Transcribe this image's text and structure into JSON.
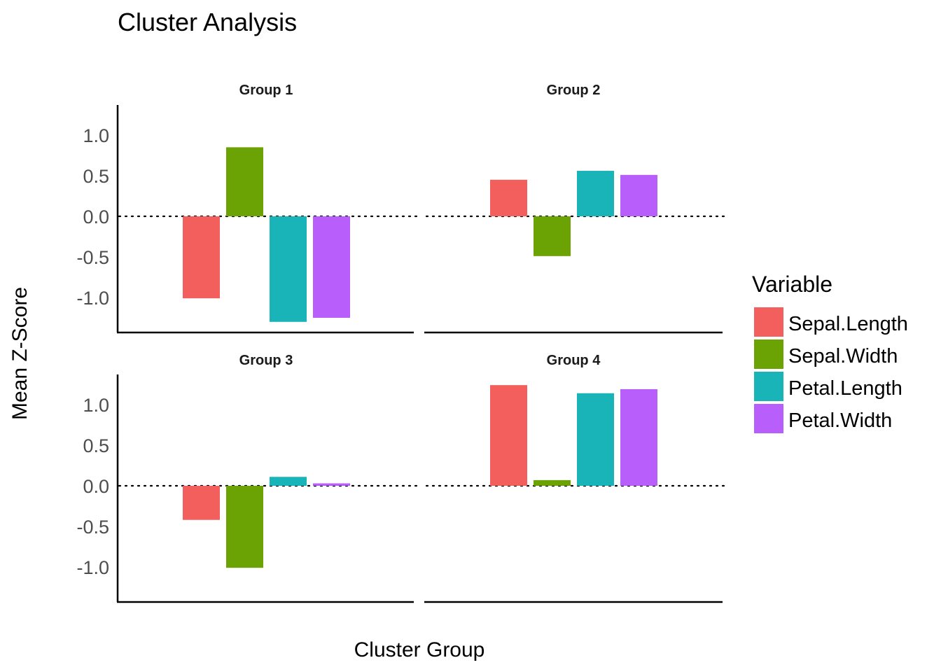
{
  "chart_data": {
    "type": "bar",
    "title": "Cluster Analysis",
    "xlabel": "Cluster Group",
    "ylabel": "Mean Z-Score",
    "ylim": [
      -1.42,
      1.36
    ],
    "yticks": [
      "1.0",
      "0.5",
      "0.0",
      "-0.5",
      "-1.0"
    ],
    "ytick_values": [
      1.0,
      0.5,
      0.0,
      -0.5,
      -1.0
    ],
    "reference_line": {
      "y": 0,
      "style": "dotted"
    },
    "grid": false,
    "legend": {
      "title": "Variable",
      "placement": "right",
      "entries": [
        {
          "name": "Sepal.Length",
          "color": "#F25F5C"
        },
        {
          "name": "Sepal.Width",
          "color": "#6BA204"
        },
        {
          "name": "Petal.Length",
          "color": "#18B4B8"
        },
        {
          "name": "Petal.Width",
          "color": "#B85EFB"
        }
      ]
    },
    "panels": [
      {
        "name": "Group 1",
        "values": [
          -1.01,
          0.85,
          -1.3,
          -1.25
        ]
      },
      {
        "name": "Group 2",
        "values": [
          0.45,
          -0.49,
          0.56,
          0.51
        ]
      },
      {
        "name": "Group 3",
        "values": [
          -0.42,
          -1.01,
          0.11,
          0.03
        ]
      },
      {
        "name": "Group 4",
        "values": [
          1.24,
          0.07,
          1.14,
          1.19
        ]
      }
    ]
  }
}
